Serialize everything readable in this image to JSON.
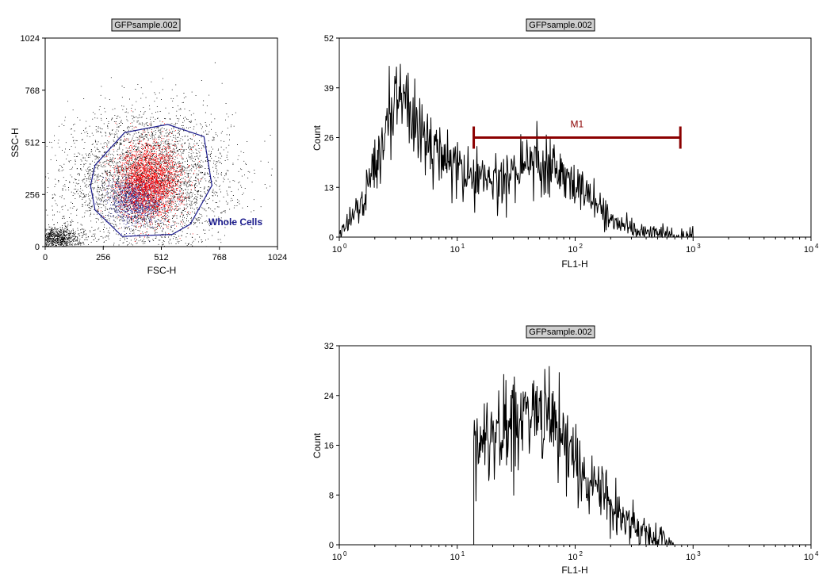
{
  "chart_data": [
    {
      "type": "scatter",
      "title": "GFPsample.002",
      "xlabel": "FSC-H",
      "ylabel": "SSC-H",
      "xlim": [
        0,
        1024
      ],
      "ylim": [
        0,
        1024
      ],
      "xticks": [
        "0",
        "256",
        "512",
        "768",
        "1024"
      ],
      "yticks": [
        "0",
        "256",
        "512",
        "768",
        "1024"
      ],
      "gate": {
        "name": "Whole Cells",
        "color": "#1a1a8c",
        "polygon": [
          [
            220,
            400
          ],
          [
            350,
            560
          ],
          [
            540,
            600
          ],
          [
            700,
            540
          ],
          [
            735,
            300
          ],
          [
            640,
            110
          ],
          [
            560,
            60
          ],
          [
            340,
            50
          ],
          [
            220,
            180
          ],
          [
            200,
            300
          ]
        ]
      },
      "series": [
        {
          "color": "#000000",
          "center": [
            450,
            320
          ],
          "spread": [
            180,
            170
          ],
          "points": 4200
        },
        {
          "color": "#000000",
          "center": [
            40,
            40
          ],
          "spread": [
            60,
            30
          ],
          "points": 1100
        },
        {
          "color": "#1a1a8c",
          "center": [
            400,
            230
          ],
          "spread": [
            60,
            60
          ],
          "points": 1100
        },
        {
          "color": "#ff0000",
          "center": [
            460,
            320
          ],
          "spread": [
            70,
            90
          ],
          "points": 2600
        }
      ]
    },
    {
      "type": "histogram",
      "title": "GFPsample.002",
      "xlabel": "FL1-H",
      "ylabel": "Count",
      "xscale": "log",
      "xlim": [
        1,
        10000
      ],
      "ylim": [
        0,
        52
      ],
      "xticks": [
        "10",
        "10",
        "10",
        "10",
        "10"
      ],
      "xtick_exponents": [
        "0",
        "1",
        "2",
        "3",
        "4"
      ],
      "yticks": [
        "0",
        "13",
        "26",
        "39",
        "52"
      ],
      "profile": [
        [
          1.0,
          1
        ],
        [
          1.3,
          5
        ],
        [
          1.8,
          14
        ],
        [
          2.3,
          24
        ],
        [
          2.8,
          33
        ],
        [
          3.3,
          36
        ],
        [
          4.0,
          32
        ],
        [
          5.5,
          25
        ],
        [
          7.5,
          20
        ],
        [
          10,
          17
        ],
        [
          14,
          15
        ],
        [
          20,
          15
        ],
        [
          30,
          17
        ],
        [
          45,
          21
        ],
        [
          60,
          20
        ],
        [
          80,
          16
        ],
        [
          110,
          12
        ],
        [
          150,
          8
        ],
        [
          200,
          5
        ],
        [
          280,
          3
        ],
        [
          400,
          1.5
        ],
        [
          600,
          0.6
        ],
        [
          800,
          0.2
        ],
        [
          1000,
          0
        ]
      ],
      "marker": {
        "label": "M1",
        "color": "#8b0000",
        "range": [
          13.8,
          780
        ],
        "y": 26
      }
    },
    {
      "type": "histogram",
      "title": "GFPsample.002",
      "xlabel": "FL1-H",
      "ylabel": "Count",
      "xscale": "log",
      "xlim": [
        1,
        10000
      ],
      "ylim": [
        0,
        32
      ],
      "xticks": [
        "10",
        "10",
        "10",
        "10",
        "10"
      ],
      "xtick_exponents": [
        "0",
        "1",
        "2",
        "3",
        "4"
      ],
      "yticks": [
        "0",
        "8",
        "16",
        "24",
        "32"
      ],
      "profile": [
        [
          13.8,
          16
        ],
        [
          20,
          17
        ],
        [
          30,
          19
        ],
        [
          45,
          23
        ],
        [
          60,
          21
        ],
        [
          80,
          17
        ],
        [
          110,
          12
        ],
        [
          150,
          9
        ],
        [
          200,
          6
        ],
        [
          280,
          4
        ],
        [
          400,
          2
        ],
        [
          600,
          0.5
        ],
        [
          700,
          0
        ]
      ]
    }
  ]
}
